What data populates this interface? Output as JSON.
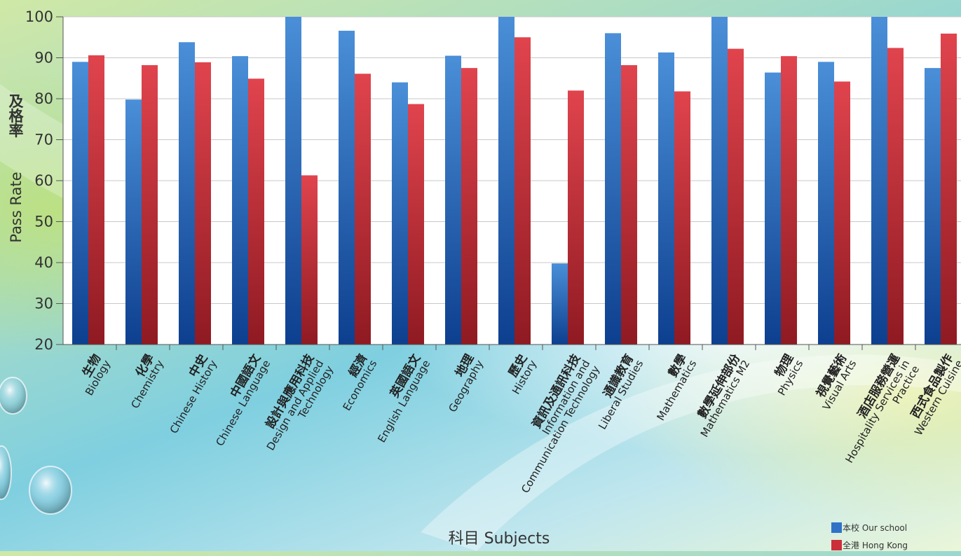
{
  "chart_data": {
    "type": "bar",
    "title": "",
    "xlabel": "科目 Subjects",
    "ylabel_zh": "及格率",
    "ylabel_en": "Pass Rate",
    "ylim": [
      20,
      100
    ],
    "yticks": [
      20,
      30,
      40,
      50,
      60,
      70,
      80,
      90,
      100
    ],
    "grid": true,
    "legend_position": "bottom-right",
    "categories": [
      {
        "zh": "生物",
        "en": "Biology"
      },
      {
        "zh": "化學",
        "en": "Chemistry"
      },
      {
        "zh": "中史",
        "en": "Chinese History"
      },
      {
        "zh": "中國語文",
        "en": "Chinese Language"
      },
      {
        "zh": "設計與應用科技",
        "en": "Design and Applied Technology"
      },
      {
        "zh": "經濟",
        "en": "Economics"
      },
      {
        "zh": "英國語文",
        "en": "English Language"
      },
      {
        "zh": "地理",
        "en": "Geography"
      },
      {
        "zh": "歷史",
        "en": "History"
      },
      {
        "zh": "資訊及通訊科技",
        "en": "Information and Communication Technology"
      },
      {
        "zh": "通識教育",
        "en": "Liberal Studies"
      },
      {
        "zh": "數學",
        "en": "Mathematics"
      },
      {
        "zh": "數學延伸部份",
        "en": "Mathematics M2"
      },
      {
        "zh": "物理",
        "en": "Physics"
      },
      {
        "zh": "視覺藝術",
        "en": "Visual Arts"
      },
      {
        "zh": "酒店服務營運",
        "en": "Hospitality Services in Practice"
      },
      {
        "zh": "西式食品製作",
        "en": "Western Cuisine"
      }
    ],
    "series": [
      {
        "name": "本校 Our school",
        "color": "#2f72c8",
        "values": [
          89,
          79.8,
          93.8,
          90.4,
          100,
          96.6,
          84,
          90.5,
          100,
          39.8,
          96,
          91.3,
          100,
          86.4,
          89,
          100,
          87.5
        ]
      },
      {
        "name": "全港 Hong Kong",
        "color": "#cc2f3a",
        "values": [
          90.6,
          88.2,
          88.9,
          84.9,
          61.3,
          86.1,
          78.7,
          87.5,
          95,
          82,
          88.2,
          81.8,
          92.2,
          90.4,
          84.2,
          92.4,
          95.9
        ]
      }
    ]
  }
}
